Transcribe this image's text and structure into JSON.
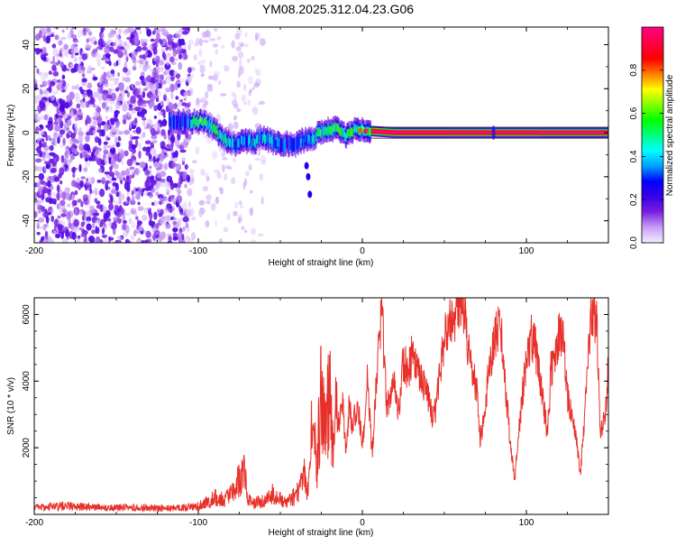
{
  "title": "YM08.2025.312.04.23.G06",
  "chart_data": [
    {
      "type": "heatmap",
      "title": "",
      "xlabel": "Height of straight line (km)",
      "ylabel": "Frequency (Hz)",
      "xlim": [
        -200,
        150
      ],
      "ylim": [
        -50,
        48
      ],
      "xticks": [
        -200,
        -100,
        0,
        100
      ],
      "yticks": [
        -40,
        -20,
        0,
        20,
        40
      ],
      "colorbar": {
        "label": "Normalized spectral amplitude",
        "ticks": [
          0.0,
          0.2,
          0.4,
          0.6,
          0.8
        ],
        "range": [
          0,
          1
        ],
        "colors": [
          "#f2ecff",
          "#c79cf5",
          "#7a1fe0",
          "#3a00e8",
          "#0000ff",
          "#00a0ff",
          "#00ffff",
          "#00ff80",
          "#00ff00",
          "#80ff00",
          "#ffff00",
          "#ff8000",
          "#ff0000",
          "#ff0040",
          "#ff0080"
        ]
      },
      "noise_region": {
        "x": [
          -200,
          -105
        ],
        "frequency": [
          -50,
          48
        ],
        "amplitude": 0.2
      },
      "ridge": {
        "x": [
          -118,
          -110,
          -104,
          -98,
          -94,
          -90,
          -86,
          -82,
          -78,
          -74,
          -70,
          -66,
          -62,
          -58,
          -54,
          -50,
          -46,
          -42,
          -38,
          -34,
          -30,
          -26,
          -22,
          -18,
          -14,
          -10,
          -6,
          -2,
          0,
          10,
          20,
          40,
          60,
          80,
          100,
          120,
          150
        ],
        "frequency": [
          5,
          5,
          5,
          5,
          4,
          1,
          -2,
          -4,
          -5,
          -4,
          -4,
          -4,
          -2,
          -3,
          -5,
          -5,
          -5,
          -6,
          -4,
          -3,
          -2,
          0,
          1,
          2,
          1,
          -1,
          1,
          1,
          1,
          0.5,
          0,
          0,
          0,
          0,
          0,
          0,
          0
        ],
        "amplitude": [
          0.25,
          0.3,
          0.4,
          0.75,
          0.6,
          0.5,
          0.45,
          0.4,
          0.35,
          0.35,
          0.35,
          0.4,
          0.35,
          0.4,
          0.35,
          0.35,
          0.3,
          0.3,
          0.35,
          0.35,
          0.4,
          0.55,
          0.6,
          0.65,
          0.5,
          0.5,
          0.6,
          0.75,
          0.95,
          1.0,
          1.0,
          1.0,
          1.0,
          1.0,
          1.0,
          1.0,
          1.0
        ]
      },
      "secondary_branch": {
        "x": [
          -34,
          -33,
          -32
        ],
        "frequency": [
          -15,
          -20,
          -28
        ],
        "amplitude": 0.25
      }
    },
    {
      "type": "line",
      "title": "",
      "xlabel": "Height of straight line (km)",
      "ylabel": "SNR (10 * v/v)",
      "xlim": [
        -200,
        150
      ],
      "ylim": [
        0,
        6500
      ],
      "xticks": [
        -200,
        -100,
        0,
        100
      ],
      "yticks": [
        2000,
        4000,
        6000
      ],
      "grid": false,
      "series": [
        {
          "name": "",
          "color": "#e8302a",
          "x": [
            -200,
            -180,
            -160,
            -140,
            -120,
            -110,
            -100,
            -95,
            -90,
            -85,
            -80,
            -75,
            -72,
            -70,
            -65,
            -60,
            -55,
            -50,
            -45,
            -40,
            -37,
            -35,
            -33,
            -30,
            -28,
            -25,
            -22,
            -20,
            -18,
            -16,
            -14,
            -12,
            -10,
            -8,
            -6,
            -4,
            -2,
            0,
            3,
            6,
            10,
            12,
            15,
            18,
            20,
            22,
            25,
            28,
            30,
            35,
            40,
            43,
            45,
            48,
            50,
            55,
            58,
            60,
            62,
            65,
            70,
            72,
            75,
            78,
            80,
            82,
            85,
            88,
            90,
            93,
            95,
            98,
            100,
            103,
            105,
            108,
            110,
            113,
            115,
            118,
            120,
            122,
            125,
            128,
            130,
            133,
            135,
            138,
            140,
            143,
            145,
            148,
            150
          ],
          "y": [
            200,
            250,
            200,
            200,
            180,
            200,
            250,
            350,
            500,
            450,
            600,
            1000,
            1500,
            400,
            350,
            400,
            600,
            450,
            400,
            600,
            900,
            1200,
            600,
            3500,
            1200,
            3700,
            2500,
            3800,
            2000,
            3600,
            2600,
            3400,
            1800,
            3300,
            2600,
            3100,
            3000,
            2000,
            4000,
            1800,
            5200,
            6000,
            3200,
            3600,
            4000,
            3000,
            4600,
            4300,
            4700,
            4100,
            3600,
            2800,
            3200,
            4600,
            5400,
            5800,
            6200,
            6500,
            6200,
            4800,
            3600,
            2200,
            3400,
            4600,
            5000,
            5600,
            5400,
            3400,
            2200,
            1000,
            2400,
            3800,
            4500,
            5300,
            5200,
            4200,
            3400,
            2400,
            4300,
            4800,
            5600,
            5400,
            3600,
            2800,
            2400,
            1200,
            2600,
            5000,
            6100,
            5800,
            2600,
            2800,
            4500
          ]
        }
      ]
    }
  ]
}
